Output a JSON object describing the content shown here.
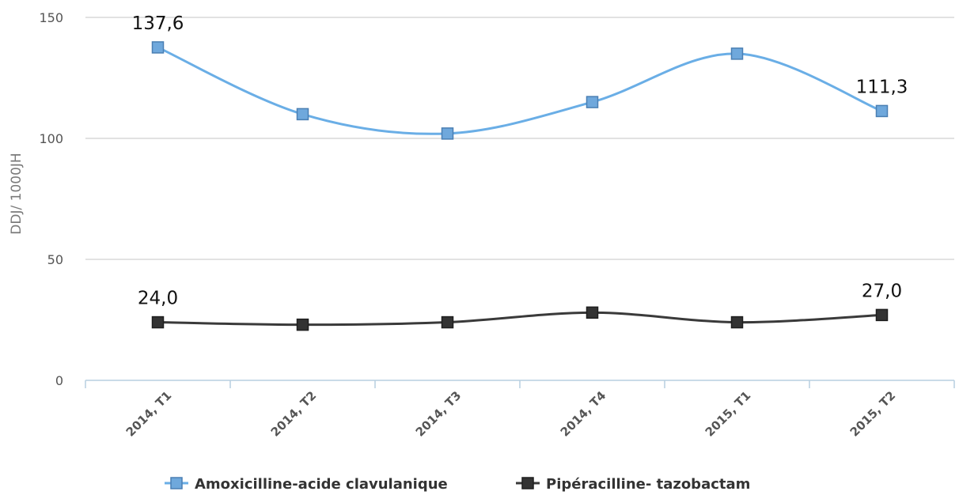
{
  "chart_data": {
    "type": "line",
    "ylabel": "DDJ/ 1000JH",
    "ylim": [
      0,
      150
    ],
    "yticks": [
      0,
      50,
      100,
      150
    ],
    "categories": [
      "2014, T1",
      "2014, T2",
      "2014, T3",
      "2014, T4",
      "2015, T1",
      "2015, T2"
    ],
    "series": [
      {
        "name": "Amoxicilline-acide clavulanique",
        "values": [
          137.6,
          110,
          102,
          115,
          135,
          111.3
        ],
        "color": "#6aaee6",
        "marker": "square",
        "smooth": true
      },
      {
        "name": "Pipéracilline- tazobactam",
        "values": [
          24.0,
          23,
          24,
          28,
          24,
          27.0
        ],
        "color": "#3a3a3a",
        "marker": "square",
        "smooth": true
      }
    ],
    "data_labels": [
      {
        "series": 0,
        "index": 0,
        "text": "137,6"
      },
      {
        "series": 0,
        "index": 5,
        "text": "111,3"
      },
      {
        "series": 1,
        "index": 0,
        "text": "24,0"
      },
      {
        "series": 1,
        "index": 5,
        "text": "27,0"
      }
    ],
    "grid": true,
    "legend_position": "bottom"
  }
}
